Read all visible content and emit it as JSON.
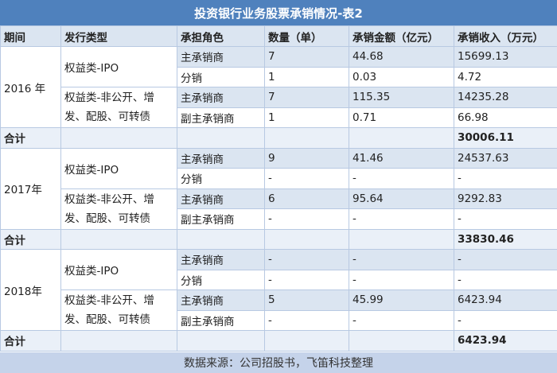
{
  "title": "投资银行业务股票承销情况-表2",
  "headers": [
    "期间",
    "发行类型",
    "承担角色",
    "数量（单）",
    "承销金额（亿元）",
    "承销收入（万元）"
  ],
  "sections": [
    {
      "period": "2016 年",
      "ipo_label": "权益类-IPO",
      "other_label": "权益类-非公开、增发、配股、可转债",
      "rows": [
        {
          "role": "主承销商",
          "count": "7",
          "amount": "44.68",
          "income": "15699.13"
        },
        {
          "role": "分销",
          "count": "1",
          "amount": "0.03",
          "income": "4.72"
        },
        {
          "role": "主承销商",
          "count": "7",
          "amount": "115.35",
          "income": "14235.28"
        },
        {
          "role": "副主承销商",
          "count": "1",
          "amount": "0.71",
          "income": "66.98"
        }
      ],
      "total_label": "合计",
      "total_income": "30006.11"
    },
    {
      "period": "2017年",
      "ipo_label": "权益类-IPO",
      "other_label": "权益类-非公开、增发、配股、可转债",
      "rows": [
        {
          "role": "主承销商",
          "count": "9",
          "amount": "41.46",
          "income": "24537.63"
        },
        {
          "role": "分销",
          "count": "-",
          "amount": "-",
          "income": "-"
        },
        {
          "role": "主承销商",
          "count": "6",
          "amount": "95.64",
          "income": "9292.83"
        },
        {
          "role": "副主承销商",
          "count": "-",
          "amount": "-",
          "income": "-"
        }
      ],
      "total_label": "合计",
      "total_income": "33830.46"
    },
    {
      "period": "2018年",
      "ipo_label": "权益类-IPO",
      "other_label": "权益类-非公开、增发、配股、可转债",
      "rows": [
        {
          "role": "主承销商",
          "count": "-",
          "amount": "-",
          "income": "-"
        },
        {
          "role": "分销",
          "count": "-",
          "amount": "-",
          "income": "-"
        },
        {
          "role": "主承销商",
          "count": "5",
          "amount": "45.99",
          "income": "6423.94"
        },
        {
          "role": "副主承销商",
          "count": "-",
          "amount": "-",
          "income": "-"
        }
      ],
      "total_label": "合计",
      "total_income": "6423.94"
    }
  ],
  "footer": "数据来源：公司招股书，飞笛科技整理",
  "colors": {
    "title_bg": "#4f81bd",
    "band_bg": "#dbe5f1",
    "footer_bg": "#c5d3ea",
    "border": "#b8c9e2"
  }
}
